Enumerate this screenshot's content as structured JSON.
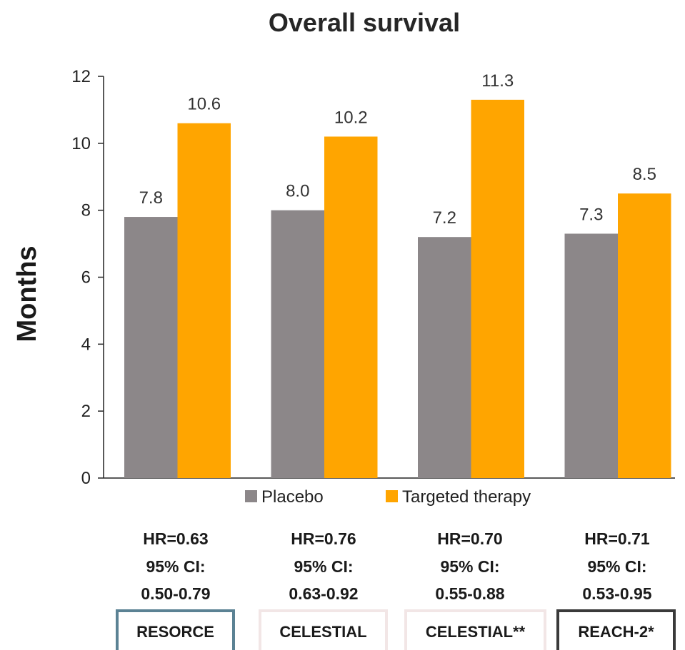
{
  "chart_data": {
    "type": "bar",
    "title": "Overall survival",
    "ylabel": "Months",
    "xlabel": "",
    "ylim": [
      0,
      12
    ],
    "yticks": [
      0,
      2,
      4,
      6,
      8,
      10,
      12
    ],
    "grid": false,
    "legend_position": "bottom",
    "categories": [
      "RESORCE",
      "CELESTIAL",
      "CELESTIAL**",
      "REACH-2*"
    ],
    "series": [
      {
        "name": "Placebo",
        "color": "#8c8789",
        "values": [
          7.8,
          8.0,
          7.2,
          7.3
        ],
        "labels": [
          "7.8",
          "8.0",
          "7.2",
          "7.3"
        ]
      },
      {
        "name": "Targeted therapy",
        "color": "#ffa500",
        "values": [
          10.6,
          10.2,
          11.3,
          8.5
        ],
        "labels": [
          "10.6",
          "10.2",
          "11.3",
          "8.5"
        ]
      }
    ],
    "annotations": [
      {
        "hr": "HR=0.63",
        "ci_label": "95% CI:",
        "ci": "0.50-0.79"
      },
      {
        "hr": "HR=0.76",
        "ci_label": "95% CI:",
        "ci": "0.63-0.92"
      },
      {
        "hr": "HR=0.70",
        "ci_label": "95% CI:",
        "ci": "0.55-0.88"
      },
      {
        "hr": "HR=0.71",
        "ci_label": "95% CI:",
        "ci": "0.53-0.95"
      }
    ],
    "trial_box_colors": [
      "#5b8294",
      "#f2e6e6",
      "#f2e6e6",
      "#3a3a3a"
    ]
  }
}
